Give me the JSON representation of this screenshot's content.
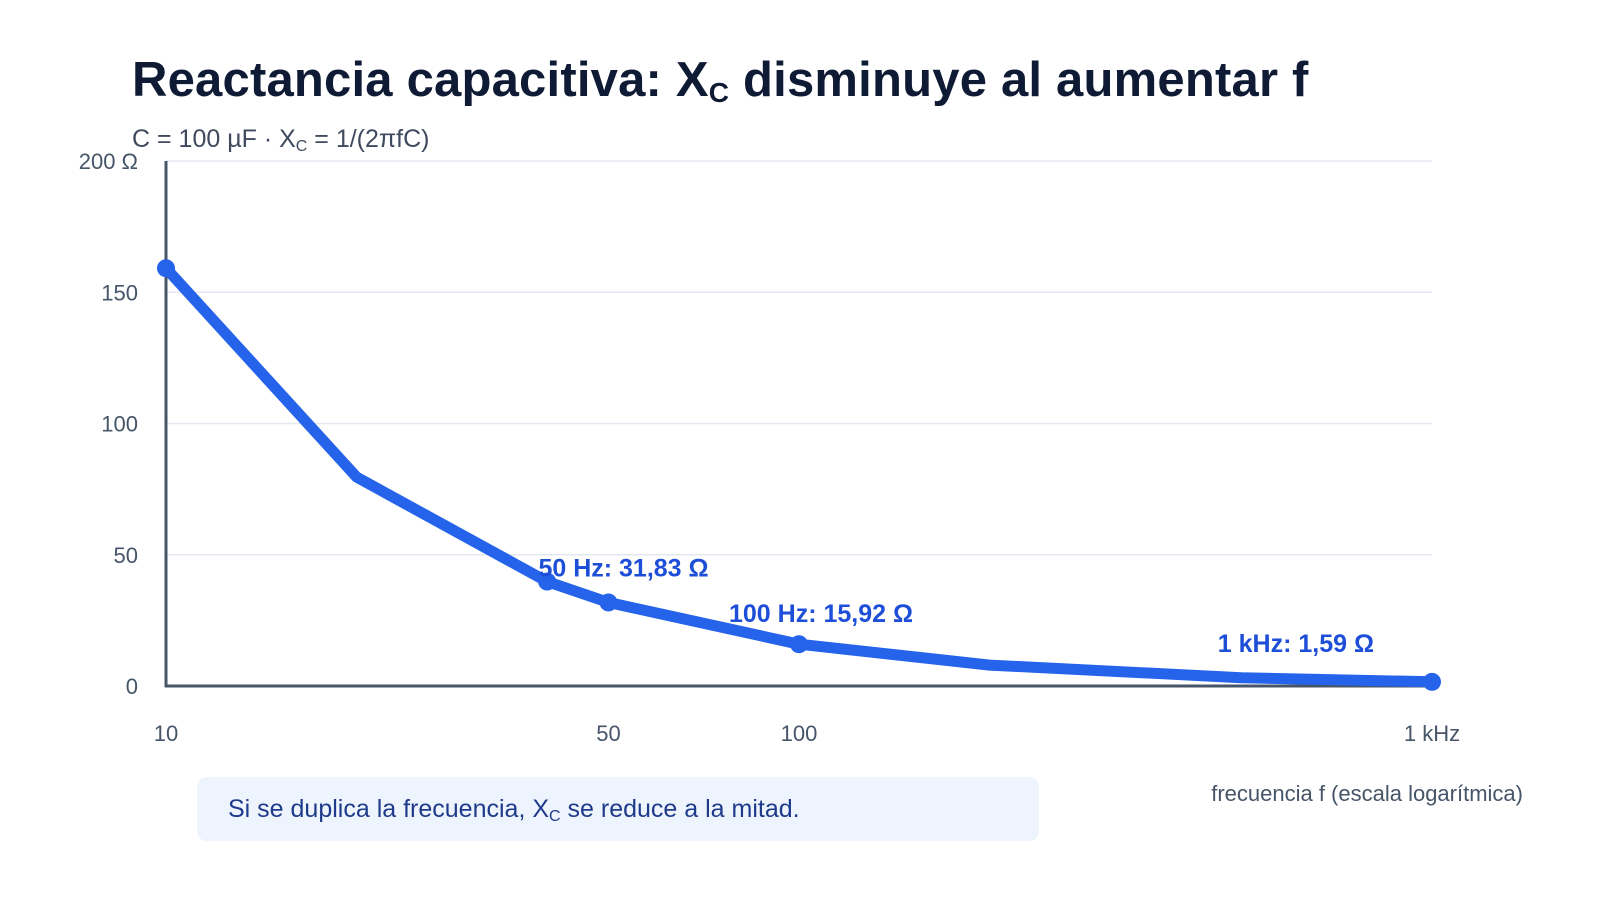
{
  "header": {
    "title_pre": "Reactancia capacitiva: X",
    "title_sub": "C",
    "title_post": " disminuye al aumentar f",
    "subtitle_pre": "C = 100 µF · X",
    "subtitle_sub": "C",
    "subtitle_post": " = 1/(2πfC)"
  },
  "note": {
    "pre": "Si se duplica la frecuencia, X",
    "sub": "C",
    "post": " se reduce a la mitad."
  },
  "colors": {
    "line": "#2563eb",
    "label": "#1d4ed8",
    "axis": "#475569",
    "grid": "#e3e8f0",
    "tick": "#475569"
  },
  "chart_data": {
    "type": "line",
    "x_scale": "log",
    "xlim": [
      10,
      1000
    ],
    "ylim": [
      0,
      200
    ],
    "xlabel": "frecuencia f (escala logarítmica)",
    "ylabel": "",
    "grid": true,
    "x_ticks": [
      {
        "value": 10,
        "label": "10"
      },
      {
        "value": 50,
        "label": "50"
      },
      {
        "value": 100,
        "label": "100"
      },
      {
        "value": 1000,
        "label": "1 kHz"
      }
    ],
    "y_ticks": [
      {
        "value": 0,
        "label": "0"
      },
      {
        "value": 50,
        "label": "50"
      },
      {
        "value": 100,
        "label": "100"
      },
      {
        "value": 150,
        "label": "150"
      },
      {
        "value": 200,
        "label": "200 Ω"
      }
    ],
    "series": [
      {
        "x": [
          10,
          20,
          40,
          50,
          100,
          200,
          500,
          1000
        ],
        "y": [
          159.15,
          79.58,
          39.79,
          31.83,
          15.92,
          7.96,
          3.18,
          1.59
        ]
      }
    ],
    "markers": [
      {
        "x": 10,
        "y": 159.15
      },
      {
        "x": 40,
        "y": 39.79
      },
      {
        "x": 50,
        "y": 31.83
      },
      {
        "x": 100,
        "y": 15.92
      },
      {
        "x": 1000,
        "y": 1.59
      }
    ],
    "annotations": [
      {
        "x": 50,
        "y": 31.83,
        "text": "50 Hz: 31,83 Ω"
      },
      {
        "x": 100,
        "y": 15.92,
        "text": "100 Hz: 15,92 Ω"
      },
      {
        "x": 1000,
        "y": 1.59,
        "text": "1 kHz: 1,59 Ω"
      }
    ]
  }
}
